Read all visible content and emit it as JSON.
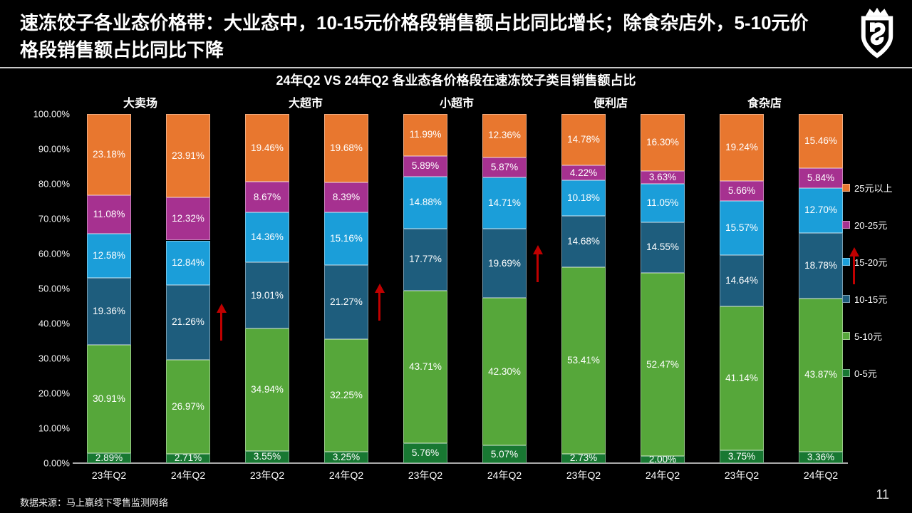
{
  "header": {
    "title_line1": "速冻饺子各业态价格带：大业态中，10-15元价格段销售额占比同比增长；除食杂店外，5-10元价",
    "title_line2": "格段销售额占比同比下降"
  },
  "chart_data": {
    "type": "bar",
    "stacked": true,
    "title": "24年Q2 VS 24年Q2 各业态各价格段在速冻饺子类目销售额占比",
    "ylim": [
      0,
      100
    ],
    "y_ticks": [
      "0.00%",
      "10.00%",
      "20.00%",
      "30.00%",
      "40.00%",
      "50.00%",
      "60.00%",
      "70.00%",
      "80.00%",
      "90.00%",
      "100.00%"
    ],
    "legend_position": "right",
    "series": [
      {
        "name": "0-5元",
        "color": "#187832"
      },
      {
        "name": "5-10元",
        "color": "#56A73A"
      },
      {
        "name": "10-15元",
        "color": "#1E5D7D"
      },
      {
        "name": "15-20元",
        "color": "#1B9ED9"
      },
      {
        "name": "20-25元",
        "color": "#A63190"
      },
      {
        "name": "25元以上",
        "color": "#E8772F"
      }
    ],
    "arrow": {
      "color": "#C00000",
      "series_index": 2
    },
    "groups": [
      {
        "name": "大卖场",
        "bars": [
          {
            "label": "23年Q2",
            "values": [
              2.89,
              30.91,
              19.36,
              12.58,
              11.08,
              23.18
            ]
          },
          {
            "label": "24年Q2",
            "values": [
              2.71,
              26.97,
              21.26,
              12.84,
              12.32,
              23.91
            ],
            "arrow": true
          }
        ]
      },
      {
        "name": "大超市",
        "bars": [
          {
            "label": "23年Q2",
            "values": [
              3.55,
              34.94,
              19.01,
              14.36,
              8.67,
              19.46
            ]
          },
          {
            "label": "24年Q2",
            "values": [
              3.25,
              32.25,
              21.27,
              15.16,
              8.39,
              19.68
            ],
            "arrow": true
          }
        ]
      },
      {
        "name": "小超市",
        "bars": [
          {
            "label": "23年Q2",
            "values": [
              5.76,
              43.71,
              17.77,
              14.88,
              5.89,
              11.99
            ]
          },
          {
            "label": "24年Q2",
            "values": [
              5.07,
              42.3,
              19.69,
              14.71,
              5.87,
              12.36
            ],
            "arrow": true
          }
        ]
      },
      {
        "name": "便利店",
        "bars": [
          {
            "label": "23年Q2",
            "values": [
              2.73,
              53.41,
              14.68,
              10.18,
              4.22,
              14.78
            ]
          },
          {
            "label": "24年Q2",
            "values": [
              2.0,
              52.47,
              14.55,
              11.05,
              3.63,
              16.3
            ]
          }
        ]
      },
      {
        "name": "食杂店",
        "bars": [
          {
            "label": "23年Q2",
            "values": [
              3.75,
              41.14,
              14.64,
              15.57,
              5.66,
              19.24
            ]
          },
          {
            "label": "24年Q2",
            "values": [
              3.36,
              43.87,
              18.78,
              12.7,
              5.84,
              15.46
            ],
            "arrow": true
          }
        ]
      }
    ]
  },
  "footer": {
    "source": "数据来源：马上赢线下零售监测网络",
    "page": "11"
  }
}
